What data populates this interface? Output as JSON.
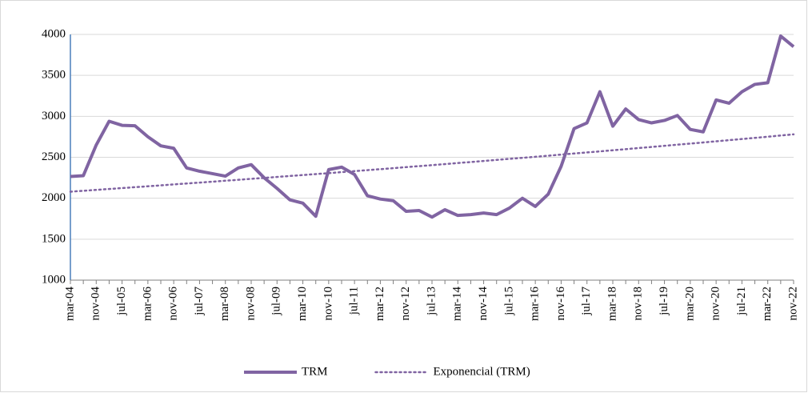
{
  "chart_data": {
    "type": "line",
    "categories": [
      "mar-04",
      null,
      "nov-04",
      null,
      "jul-05",
      null,
      "mar-06",
      null,
      "nov-06",
      null,
      "jul-07",
      null,
      "mar-08",
      null,
      "nov-08",
      null,
      "jul-09",
      null,
      "mar-10",
      null,
      "nov-10",
      null,
      "jul-11",
      null,
      "mar-12",
      null,
      "nov-12",
      null,
      "jul-13",
      null,
      "mar-14",
      null,
      "nov-14",
      null,
      "jul-15",
      null,
      "mar-16",
      null,
      "nov-16",
      null,
      "jul-17",
      null,
      "mar-18",
      null,
      "nov-18",
      null,
      "jul-19",
      null,
      "mar-20",
      null,
      "nov-20",
      null,
      "jul-21",
      null,
      "mar-22",
      null,
      "nov-22"
    ],
    "series": [
      {
        "name": "TRM",
        "color": "#8064a2",
        "style": "solid",
        "values": [
          2265,
          2275,
          2650,
          2940,
          2890,
          2885,
          2750,
          2640,
          2610,
          2370,
          2330,
          2300,
          2270,
          2370,
          2410,
          2250,
          2120,
          1980,
          1940,
          1780,
          2350,
          2380,
          2290,
          2030,
          1990,
          1970,
          1840,
          1850,
          1770,
          1860,
          1790,
          1800,
          1820,
          1800,
          1880,
          2000,
          1900,
          2050,
          2390,
          2850,
          2920,
          3300,
          2880,
          3090,
          2960,
          2920,
          2950,
          3010,
          2840,
          2810,
          3200,
          3160,
          3300,
          3390,
          3410,
          3980,
          3850
        ]
      },
      {
        "name": "Exponencial (TRM)",
        "color": "#8064a2",
        "style": "dotted",
        "values": [
          2080,
          2091,
          2102,
          2113,
          2124,
          2135,
          2146,
          2157,
          2169,
          2180,
          2191,
          2202,
          2214,
          2225,
          2237,
          2248,
          2260,
          2272,
          2283,
          2295,
          2306,
          2319,
          2331,
          2343,
          2355,
          2367,
          2380,
          2392,
          2404,
          2417,
          2430,
          2442,
          2455,
          2468,
          2481,
          2493,
          2506,
          2519,
          2533,
          2546,
          2559,
          2572,
          2586,
          2599,
          2613,
          2626,
          2640,
          2654,
          2667,
          2681,
          2695,
          2709,
          2723,
          2737,
          2751,
          2766,
          2780
        ]
      }
    ],
    "ylim": [
      1000,
      4000
    ],
    "yticks": [
      1000,
      1500,
      2000,
      2500,
      3000,
      3500,
      4000
    ],
    "grid": true,
    "legend": "bottom"
  }
}
